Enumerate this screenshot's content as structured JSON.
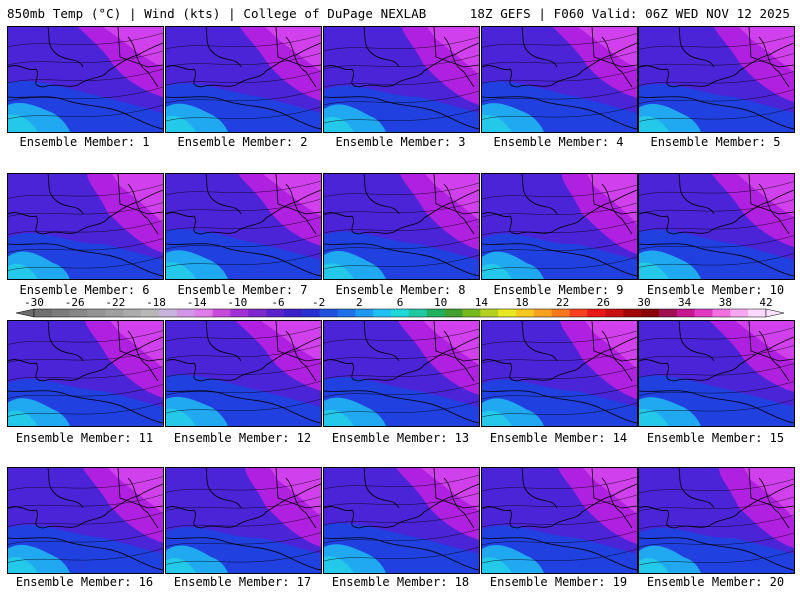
{
  "header": {
    "left": "850mb Temp (°C) | Wind (kts) | College of DuPage NEXLAB",
    "right": "18Z GEFS | F060 Valid: 06Z WED NOV 12 2025"
  },
  "members": [
    {
      "label": "Ensemble Member: 1"
    },
    {
      "label": "Ensemble Member: 2"
    },
    {
      "label": "Ensemble Member: 3"
    },
    {
      "label": "Ensemble Member: 4"
    },
    {
      "label": "Ensemble Member: 5"
    },
    {
      "label": "Ensemble Member: 6"
    },
    {
      "label": "Ensemble Member: 7"
    },
    {
      "label": "Ensemble Member: 8"
    },
    {
      "label": "Ensemble Member: 9"
    },
    {
      "label": "Ensemble Member: 10"
    },
    {
      "label": "Ensemble Member: 11"
    },
    {
      "label": "Ensemble Member: 12"
    },
    {
      "label": "Ensemble Member: 13"
    },
    {
      "label": "Ensemble Member: 14"
    },
    {
      "label": "Ensemble Member: 15"
    },
    {
      "label": "Ensemble Member: 16"
    },
    {
      "label": "Ensemble Member: 17"
    },
    {
      "label": "Ensemble Member: 18"
    },
    {
      "label": "Ensemble Member: 19"
    },
    {
      "label": "Ensemble Member: 20"
    }
  ],
  "colorbar": {
    "ticks": [
      "-30",
      "-26",
      "-22",
      "-18",
      "-14",
      "-10",
      "-6",
      "-2",
      "2",
      "6",
      "10",
      "14",
      "18",
      "22",
      "26",
      "30",
      "34",
      "38",
      "42"
    ],
    "colors": [
      "#707070",
      "#7c7c7c",
      "#888888",
      "#949494",
      "#a0a0a0",
      "#acacac",
      "#b8b8b8",
      "#c8b4dc",
      "#d296e6",
      "#e07ce8",
      "#c84cdc",
      "#a030d4",
      "#7c28cc",
      "#5a22c8",
      "#3c20c8",
      "#2830d0",
      "#2050dc",
      "#2070e8",
      "#2098f0",
      "#20c0f4",
      "#20d8d8",
      "#20c8a0",
      "#20b060",
      "#40a030",
      "#78b820",
      "#b4d020",
      "#e8e820",
      "#f8c820",
      "#f8a020",
      "#f87820",
      "#f84020",
      "#e81818",
      "#c81010",
      "#a00808",
      "#880008",
      "#a01050",
      "#c81890",
      "#e038c0",
      "#f070e0",
      "#f8a8f0",
      "#fcd8fc"
    ]
  },
  "palette": {
    "cold": "#b020e0",
    "mid": "#4a24d6",
    "blue": "#2040e0",
    "warm": "#24c8e8"
  }
}
